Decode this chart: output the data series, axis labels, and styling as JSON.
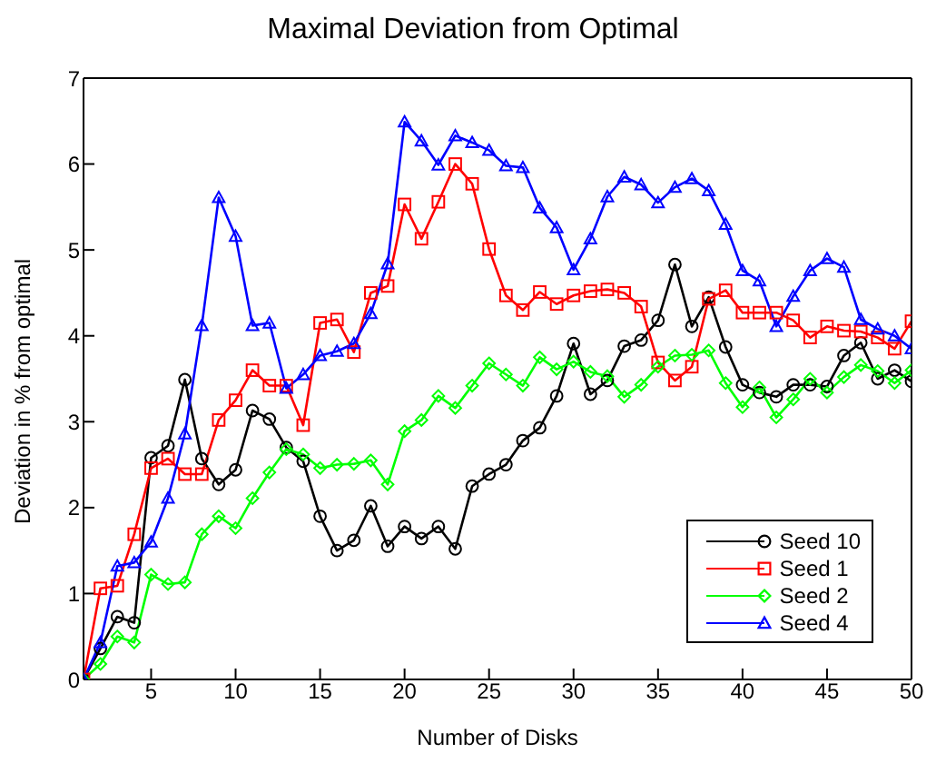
{
  "chart_data": {
    "type": "line",
    "title": "Maximal Deviation from Optimal",
    "xlabel": "Number of Disks",
    "ylabel": "Deviation in % from optimal",
    "x": [
      1,
      2,
      3,
      4,
      5,
      6,
      7,
      8,
      9,
      10,
      11,
      12,
      13,
      14,
      15,
      16,
      17,
      18,
      19,
      20,
      21,
      22,
      23,
      24,
      25,
      26,
      27,
      28,
      29,
      30,
      31,
      32,
      33,
      34,
      35,
      36,
      37,
      38,
      39,
      40,
      41,
      42,
      43,
      44,
      45,
      46,
      47,
      48,
      49,
      50
    ],
    "series": [
      {
        "name": "Seed 10",
        "color": "#000000",
        "marker": "circle",
        "values": [
          0,
          0.36,
          0.73,
          0.66,
          2.58,
          2.72,
          3.49,
          2.57,
          2.27,
          2.44,
          3.13,
          3.03,
          2.7,
          2.54,
          1.9,
          1.5,
          1.62,
          2.02,
          1.55,
          1.78,
          1.64,
          1.78,
          1.52,
          2.25,
          2.39,
          2.5,
          2.78,
          2.93,
          3.3,
          3.91,
          3.32,
          3.48,
          3.88,
          3.95,
          4.18,
          4.83,
          4.11,
          4.45,
          3.87,
          3.43,
          3.34,
          3.29,
          3.43,
          3.43,
          3.41,
          3.77,
          3.92,
          3.5,
          3.6,
          3.47
        ]
      },
      {
        "name": "Seed 1",
        "color": "#ff0000",
        "marker": "square",
        "values": [
          0,
          1.06,
          1.09,
          1.69,
          2.46,
          2.57,
          2.39,
          2.39,
          3.02,
          3.25,
          3.6,
          3.42,
          3.42,
          2.96,
          4.15,
          4.19,
          3.81,
          4.5,
          4.58,
          5.53,
          5.13,
          5.56,
          6.0,
          5.77,
          5.01,
          4.47,
          4.3,
          4.51,
          4.37,
          4.47,
          4.52,
          4.54,
          4.5,
          4.34,
          3.69,
          3.48,
          3.64,
          4.43,
          4.53,
          4.27,
          4.27,
          4.27,
          4.18,
          3.98,
          4.11,
          4.06,
          4.05,
          3.98,
          3.85,
          4.17
        ]
      },
      {
        "name": "Seed 2",
        "color": "#00ff00",
        "marker": "diamond",
        "values": [
          0,
          0.18,
          0.5,
          0.43,
          1.22,
          1.11,
          1.13,
          1.69,
          1.9,
          1.76,
          2.11,
          2.41,
          2.68,
          2.62,
          2.46,
          2.5,
          2.51,
          2.55,
          2.27,
          2.89,
          3.02,
          3.3,
          3.16,
          3.42,
          3.68,
          3.55,
          3.42,
          3.75,
          3.61,
          3.7,
          3.58,
          3.53,
          3.29,
          3.43,
          3.64,
          3.77,
          3.78,
          3.83,
          3.45,
          3.17,
          3.4,
          3.05,
          3.26,
          3.5,
          3.34,
          3.52,
          3.66,
          3.59,
          3.45,
          3.6
        ]
      },
      {
        "name": "Seed 4",
        "color": "#0000ff",
        "marker": "triangle",
        "values": [
          0,
          0.43,
          1.32,
          1.36,
          1.6,
          2.11,
          2.86,
          4.12,
          5.61,
          5.16,
          4.12,
          4.15,
          3.39,
          3.55,
          3.77,
          3.82,
          3.91,
          4.26,
          4.84,
          6.49,
          6.27,
          5.99,
          6.33,
          6.25,
          6.16,
          5.98,
          5.96,
          5.49,
          5.26,
          4.77,
          5.13,
          5.62,
          5.85,
          5.76,
          5.55,
          5.73,
          5.83,
          5.69,
          5.3,
          4.76,
          4.64,
          4.11,
          4.46,
          4.76,
          4.9,
          4.8,
          4.19,
          4.08,
          4.0,
          3.85
        ]
      }
    ],
    "xlim": [
      1,
      50
    ],
    "xticks": [
      5,
      10,
      15,
      20,
      25,
      30,
      35,
      40,
      45,
      50
    ],
    "ylim": [
      0,
      7
    ],
    "yticks": [
      0,
      1,
      2,
      3,
      4,
      5,
      6,
      7
    ],
    "legend": "bottom right",
    "grid": false,
    "line_style": "solid"
  }
}
